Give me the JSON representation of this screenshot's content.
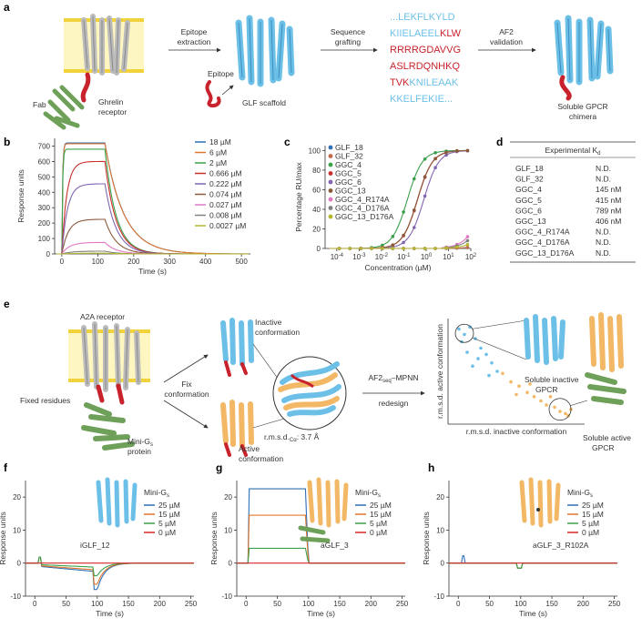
{
  "panels": {
    "a": {
      "label": "a",
      "fab": "Fab",
      "receptor_line1": "Ghrelin",
      "receptor_line2": "receptor",
      "step1_line1": "Epitope",
      "step1_line2": "extraction",
      "epitope": "Epitope",
      "scaffold": "GLF scaffold",
      "step2_line1": "Sequence",
      "step2_line2": "grafting",
      "seq1": "...LEKFLKYLD",
      "seq2a": "KIIELAEEL",
      "seq2b": "KLW",
      "seq3": "RRRRGDAVVG",
      "seq4": "ASLRDQNHKQ",
      "seq5a": "TVK",
      "seq5b": "KNILEAAK",
      "seq6": "KKELFEKIE...",
      "step3_line1": "AF2",
      "step3_line2": "validation",
      "chimera_line1": "Soluble GPCR",
      "chimera_line2": "chimera"
    },
    "b": {
      "label": "b"
    },
    "c": {
      "label": "c"
    },
    "d": {
      "label": "d"
    },
    "e": {
      "label": "e",
      "receptor": "A2A receptor",
      "fixed": "Fixed residues",
      "minigs_a": "Mini-G",
      "minigs_sub": "s",
      "protein": "protein",
      "fix_line1": "Fix",
      "fix_line2": "conformation",
      "inactive_line1": "Inactive",
      "inactive_line2": "conformation",
      "rmsd_a": "r.m.s.d.",
      "rmsd_sub": "Cα",
      "rmsd_b": ": 3.7 Å",
      "active_line1": "Active",
      "active_line2": "conformation",
      "mpnn_a": "AF2",
      "mpnn_sub": "seq",
      "mpnn_b": "–MPNN",
      "redesign": "redesign",
      "sol_inactive_line1": "Soluble inactive",
      "sol_inactive_line2": "GPCR",
      "sol_active_line1": "Soluble active",
      "sol_active_line2": "GPCR"
    },
    "f": {
      "label": "f"
    },
    "g": {
      "label": "g"
    },
    "h": {
      "label": "h"
    }
  },
  "chart_data": [
    {
      "id": "b",
      "type": "line",
      "xlabel": "Time (s)",
      "ylabel": "Response units",
      "xlim": [
        -20,
        525
      ],
      "ylim": [
        0,
        750
      ],
      "xticks": [
        0,
        100,
        200,
        300,
        400,
        500
      ],
      "yticks": [
        0,
        100,
        200,
        300,
        400,
        500,
        600,
        700
      ],
      "assoc_end": 120,
      "series": [
        {
          "name": "18 µM",
          "color": "#2f6fb5",
          "plateau": 720
        },
        {
          "name": "6 µM",
          "color": "#e0772e",
          "plateau": 715
        },
        {
          "name": "2 µM",
          "color": "#3aa04b",
          "plateau": 680
        },
        {
          "name": "0.666 µM",
          "color": "#c9302c",
          "plateau": 600
        },
        {
          "name": "0.222 µM",
          "color": "#8066b0",
          "plateau": 455
        },
        {
          "name": "0.074 µM",
          "color": "#8b5a3c",
          "plateau": 225
        },
        {
          "name": "0.027 µM",
          "color": "#e377c2",
          "plateau": 75
        },
        {
          "name": "0.008 µM",
          "color": "#808080",
          "plateau": 18
        },
        {
          "name": "0.0027 µM",
          "color": "#b5b530",
          "plateau": 5
        }
      ]
    },
    {
      "id": "c",
      "type": "scatter",
      "xlabel": "Concentration (µM)",
      "ylabel": "Percentage RU/max",
      "xscale": "log",
      "xlim": [
        3e-05,
        100
      ],
      "ylim": [
        0,
        105
      ],
      "xticks": [
        "10^-4",
        "10^-3",
        "10^-2",
        "10^-1",
        "10^0",
        "10^1",
        "10^2"
      ],
      "yticks": [
        0,
        20,
        40,
        60,
        80,
        100
      ],
      "x": [
        0.00013,
        0.00039,
        0.0012,
        0.0036,
        0.011,
        0.032,
        0.097,
        0.29,
        0.88,
        2.6,
        7.9,
        24,
        71
      ],
      "series": [
        {
          "name": "GLF_18",
          "color": "#2f6fb5",
          "ec50": null,
          "max": 1
        },
        {
          "name": "GLF_32",
          "color": "#c4694a",
          "ec50": null,
          "max": 1
        },
        {
          "name": "GGC_4",
          "color": "#3aa04b",
          "ec50": 0.145,
          "max": 100
        },
        {
          "name": "GGC_5",
          "color": "#c9302c",
          "ec50": 0.415,
          "max": 100
        },
        {
          "name": "GGC_6",
          "color": "#8066b0",
          "ec50": 0.789,
          "max": 100
        },
        {
          "name": "GGC_13",
          "color": "#8b5a3c",
          "ec50": 0.406,
          "max": 100
        },
        {
          "name": "GGC_4_R174A",
          "color": "#e377c2",
          "ec50": null,
          "max": 12
        },
        {
          "name": "GGC_4_D176A",
          "color": "#808080",
          "ec50": null,
          "max": 8
        },
        {
          "name": "GGC_13_D176A",
          "color": "#b5b530",
          "ec50": null,
          "max": 4
        }
      ]
    },
    {
      "id": "d",
      "type": "table",
      "header": "Experimental K",
      "header_sub": "d",
      "rows": [
        [
          "GLF_18",
          "N.D."
        ],
        [
          "GLF_32",
          "N.D."
        ],
        [
          "GGC_4",
          "145 nM"
        ],
        [
          "GGC_5",
          "415 nM"
        ],
        [
          "GGC_6",
          "789 nM"
        ],
        [
          "GGC_13",
          "406 nM"
        ],
        [
          "GGC_4_R174A",
          "N.D."
        ],
        [
          "GGC_4_D176A",
          "N.D."
        ],
        [
          "GGC_13_D176A",
          "N.D."
        ]
      ]
    },
    {
      "id": "e",
      "type": "scatter",
      "xlabel": "r.m.s.d. inactive conformation",
      "ylabel": "r.m.s.d. active conformation",
      "xlim": [
        0,
        10
      ],
      "ylim": [
        0,
        10
      ],
      "series": [
        {
          "name": "inactive",
          "color": "#6cc0e8",
          "x": [
            0.8,
            1.2,
            1.6,
            1.0,
            2.0,
            2.4,
            1.4,
            2.8,
            3.2,
            1.8,
            2.2,
            3.6,
            3.0
          ],
          "y": [
            9.0,
            8.5,
            9.2,
            7.8,
            8.1,
            7.2,
            6.8,
            6.6,
            5.8,
            5.5,
            6.2,
            5.0,
            4.6
          ]
        },
        {
          "name": "active",
          "color": "#f2b866",
          "x": [
            4.0,
            4.6,
            5.2,
            5.8,
            6.3,
            6.8,
            7.2,
            7.8,
            8.2,
            8.6,
            9.0,
            7.5,
            8.8,
            6.0,
            5.0
          ],
          "y": [
            4.8,
            4.0,
            3.6,
            3.0,
            2.6,
            2.2,
            1.8,
            1.6,
            1.2,
            1.0,
            1.4,
            2.6,
            0.8,
            3.8,
            2.8
          ]
        }
      ]
    },
    {
      "id": "f",
      "type": "line",
      "protein": "iGLF_12",
      "title_a": "Mini-G",
      "title_sub": "s",
      "xlabel": "Time (s)",
      "ylabel": "Response units",
      "xlim": [
        -15,
        255
      ],
      "ylim": [
        -10,
        25
      ],
      "xticks": [
        0,
        50,
        100,
        150,
        200,
        250
      ],
      "yticks": [
        -10,
        0,
        10,
        20
      ],
      "shape": "dip",
      "series": [
        {
          "name": "25 µM",
          "color": "#2f6fb5",
          "level": -2.5
        },
        {
          "name": "15 µM",
          "color": "#e0772e",
          "level": -2.0
        },
        {
          "name": "5 µM",
          "color": "#3aa04b",
          "level": -1.2
        },
        {
          "name": "0 µM",
          "color": "#d62728",
          "level": 0
        }
      ]
    },
    {
      "id": "g",
      "type": "line",
      "protein": "aGLF_3",
      "title_a": "Mini-G",
      "title_sub": "s",
      "xlabel": "Time (s)",
      "ylabel": "Response units",
      "xlim": [
        -15,
        255
      ],
      "ylim": [
        -10,
        25
      ],
      "xticks": [
        0,
        50,
        100,
        150,
        200,
        250
      ],
      "yticks": [
        -10,
        0,
        10,
        20
      ],
      "shape": "square",
      "series": [
        {
          "name": "25 µM",
          "color": "#2f6fb5",
          "level": 22.5
        },
        {
          "name": "15 µM",
          "color": "#e0772e",
          "level": 14.5
        },
        {
          "name": "5 µM",
          "color": "#3aa04b",
          "level": 4.5
        },
        {
          "name": "0 µM",
          "color": "#d62728",
          "level": 0
        }
      ]
    },
    {
      "id": "h",
      "type": "line",
      "protein": "aGLF_3_R102A",
      "title_a": "Mini-G",
      "title_sub": "s",
      "xlabel": "Time (s)",
      "ylabel": "Response units",
      "xlim": [
        -15,
        255
      ],
      "ylim": [
        -10,
        25
      ],
      "xticks": [
        0,
        50,
        100,
        150,
        200,
        250
      ],
      "yticks": [
        -10,
        0,
        10,
        20
      ],
      "shape": "flat",
      "series": [
        {
          "name": "25 µM",
          "color": "#2f6fb5",
          "level": 0
        },
        {
          "name": "15 µM",
          "color": "#e0772e",
          "level": 0
        },
        {
          "name": "5 µM",
          "color": "#3aa04b",
          "level": 0
        },
        {
          "name": "0 µM",
          "color": "#d62728",
          "level": 0
        }
      ]
    }
  ]
}
